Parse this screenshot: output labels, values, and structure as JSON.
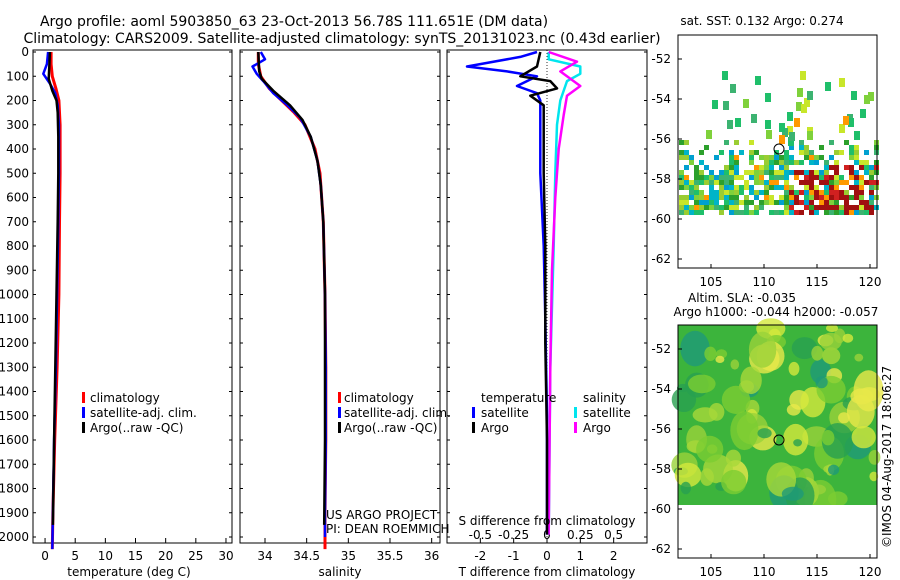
{
  "titles": {
    "line1": "Argo profile: aoml 5903850_63 23-Oct-2013 56.78S 111.651E (DM data)",
    "line2": "Climatology: CARS2009. Satellite-adjusted climatology: synTS_20131023.nc (0.43d earlier)"
  },
  "colors": {
    "climatology": "#ff0000",
    "satellite": "#0000ff",
    "argo": "#000000",
    "sat_salinity": "#00e5ee",
    "argo_salinity": "#ff00ff"
  },
  "depth_axis": {
    "ticks": [
      "0",
      "100",
      "200",
      "300",
      "400",
      "500",
      "600",
      "700",
      "800",
      "900",
      "1000",
      "1100",
      "1200",
      "1300",
      "1400",
      "1500",
      "1600",
      "1700",
      "1800",
      "1900",
      "2000"
    ]
  },
  "chart_data": [
    {
      "type": "line",
      "name": "temperature-profile",
      "xlabel": "temperature (deg C)",
      "xlim": [
        -2,
        31
      ],
      "ylim": [
        2050,
        0
      ],
      "xticks": [
        "0",
        "5",
        "10",
        "15",
        "20",
        "25",
        "30"
      ],
      "series": [
        {
          "name": "climatology",
          "points": [
            [
              1.0,
              0
            ],
            [
              1.0,
              50
            ],
            [
              1.2,
              100
            ],
            [
              1.8,
              150
            ],
            [
              2.3,
              200
            ],
            [
              2.5,
              300
            ],
            [
              2.5,
              500
            ],
            [
              2.4,
              700
            ],
            [
              2.3,
              1000
            ],
            [
              2.0,
              1300
            ],
            [
              1.6,
              1600
            ],
            [
              1.3,
              1900
            ],
            [
              1.2,
              2050
            ]
          ]
        },
        {
          "name": "satellite-adj. clim.",
          "points": [
            [
              0.5,
              0
            ],
            [
              0.3,
              50
            ],
            [
              -0.3,
              90
            ],
            [
              0.8,
              130
            ],
            [
              1.7,
              170
            ],
            [
              2.1,
              220
            ],
            [
              2.3,
              300
            ],
            [
              2.3,
              500
            ],
            [
              2.2,
              700
            ],
            [
              2.0,
              1000
            ],
            [
              1.8,
              1300
            ],
            [
              1.5,
              1600
            ],
            [
              1.3,
              1900
            ],
            [
              1.2,
              2050
            ]
          ]
        },
        {
          "name": "Argo(..raw -QC)",
          "points": [
            [
              0.8,
              0
            ],
            [
              0.7,
              60
            ],
            [
              0.6,
              110
            ],
            [
              1.2,
              160
            ],
            [
              1.9,
              200
            ],
            [
              2.1,
              250
            ],
            [
              2.2,
              350
            ],
            [
              2.2,
              500
            ],
            [
              2.1,
              700
            ],
            [
              1.9,
              1000
            ],
            [
              1.7,
              1300
            ],
            [
              1.5,
              1600
            ],
            [
              1.3,
              1950
            ]
          ]
        }
      ],
      "legend": [
        "climatology",
        "satellite-adj. clim.",
        "Argo(..raw -QC)"
      ]
    },
    {
      "type": "line",
      "name": "salinity-profile",
      "xlabel": "salinity",
      "xlim": [
        33.7,
        36.1
      ],
      "ylim": [
        2050,
        0
      ],
      "xticks": [
        "34",
        "34.5",
        "35",
        "35.5",
        "36"
      ],
      "series": [
        {
          "name": "climatology",
          "points": [
            [
              33.92,
              0
            ],
            [
              33.92,
              50
            ],
            [
              33.95,
              100
            ],
            [
              34.05,
              150
            ],
            [
              34.2,
              200
            ],
            [
              34.35,
              250
            ],
            [
              34.48,
              300
            ],
            [
              34.6,
              400
            ],
            [
              34.66,
              500
            ],
            [
              34.7,
              700
            ],
            [
              34.72,
              1000
            ],
            [
              34.73,
              1300
            ],
            [
              34.73,
              1600
            ],
            [
              34.72,
              1900
            ],
            [
              34.72,
              2050
            ]
          ]
        },
        {
          "name": "satellite-adj. clim.",
          "points": [
            [
              33.95,
              0
            ],
            [
              34.0,
              30
            ],
            [
              33.85,
              60
            ],
            [
              33.9,
              90
            ],
            [
              33.98,
              120
            ],
            [
              34.1,
              170
            ],
            [
              34.27,
              220
            ],
            [
              34.42,
              270
            ],
            [
              34.55,
              350
            ],
            [
              34.63,
              450
            ],
            [
              34.67,
              550
            ],
            [
              34.7,
              700
            ],
            [
              34.72,
              1000
            ],
            [
              34.73,
              1300
            ],
            [
              34.73,
              1600
            ],
            [
              34.72,
              1900
            ],
            [
              34.72,
              2000
            ]
          ]
        },
        {
          "name": "Argo(..raw -QC)",
          "points": [
            [
              33.92,
              0
            ],
            [
              33.93,
              80
            ],
            [
              33.96,
              110
            ],
            [
              34.1,
              160
            ],
            [
              34.3,
              220
            ],
            [
              34.45,
              280
            ],
            [
              34.55,
              350
            ],
            [
              34.63,
              450
            ],
            [
              34.67,
              550
            ],
            [
              34.7,
              700
            ],
            [
              34.72,
              1000
            ],
            [
              34.72,
              1300
            ],
            [
              34.72,
              1600
            ],
            [
              34.71,
              1950
            ]
          ]
        }
      ],
      "legend": [
        "climatology",
        "satellite-adj. clim.",
        "Argo(..raw -QC)"
      ],
      "annotation": [
        "US ARGO PROJECT",
        "PI: DEAN ROEMMICH"
      ]
    },
    {
      "type": "line",
      "name": "difference-profile",
      "xlabel": "T difference from climatology",
      "xlabel_top": "S difference from climatology",
      "xlim": [
        -3,
        3
      ],
      "ylim": [
        2050,
        0
      ],
      "xticks": [
        "-2",
        "-1",
        "0",
        "1",
        "2"
      ],
      "xticks_s": [
        "-0.5",
        "-0.25",
        "0",
        "0.25",
        "0.5"
      ],
      "legend_headers": [
        "temperature",
        "salinity"
      ],
      "legend": [
        "satellite",
        "Argo",
        "satellite",
        "Argo"
      ],
      "series": [
        {
          "name": "temperature satellite",
          "points": [
            [
              -0.3,
              0
            ],
            [
              -0.8,
              20
            ],
            [
              -2.4,
              60
            ],
            [
              -1.2,
              80
            ],
            [
              -0.3,
              100
            ],
            [
              -0.9,
              140
            ],
            [
              -0.3,
              170
            ],
            [
              -0.2,
              200
            ],
            [
              -0.2,
              300
            ],
            [
              -0.2,
              500
            ],
            [
              -0.1,
              800
            ],
            [
              -0.05,
              1100
            ],
            [
              0.0,
              1500
            ],
            [
              0.0,
              1990
            ]
          ]
        },
        {
          "name": "temperature Argo",
          "points": [
            [
              -0.2,
              0
            ],
            [
              -0.3,
              60
            ],
            [
              -0.8,
              100
            ],
            [
              0.1,
              120
            ],
            [
              0.3,
              150
            ],
            [
              -0.5,
              180
            ],
            [
              -0.1,
              220
            ],
            [
              -0.1,
              300
            ],
            [
              -0.1,
              500
            ],
            [
              -0.05,
              800
            ],
            [
              -0.05,
              1200
            ],
            [
              0.0,
              1600
            ],
            [
              0.0,
              1990
            ]
          ]
        },
        {
          "name": "salinity satellite",
          "points": [
            [
              0.05,
              0
            ],
            [
              0.05,
              30
            ],
            [
              1.0,
              60
            ],
            [
              1.0,
              90
            ],
            [
              0.6,
              120
            ],
            [
              0.4,
              200
            ],
            [
              0.3,
              300
            ],
            [
              0.25,
              500
            ],
            [
              0.2,
              800
            ],
            [
              0.1,
              1300
            ],
            [
              0.05,
              1990
            ]
          ]
        },
        {
          "name": "salinity Argo",
          "points": [
            [
              0.05,
              0
            ],
            [
              0.9,
              40
            ],
            [
              0.4,
              80
            ],
            [
              1.0,
              140
            ],
            [
              0.6,
              180
            ],
            [
              0.5,
              260
            ],
            [
              0.35,
              400
            ],
            [
              0.25,
              600
            ],
            [
              0.15,
              900
            ],
            [
              0.1,
              1300
            ],
            [
              0.05,
              1990
            ]
          ]
        }
      ]
    }
  ],
  "sst_map": {
    "title": "sat. SST: 0.132 Argo: 0.274",
    "xticks": [
      "105",
      "110",
      "115",
      "120"
    ],
    "yticks": [
      "-52",
      "-54",
      "-56",
      "-58",
      "-60",
      "-62"
    ]
  },
  "sla_map": {
    "title1": "Altim. SLA: -0.035",
    "title2": "Argo h1000: -0.044 h2000: -0.057",
    "xticks": [
      "105",
      "110",
      "115",
      "120"
    ],
    "yticks": [
      "-52",
      "-54",
      "-56",
      "-58",
      "-60",
      "-62"
    ]
  },
  "credit": "©IMOS 04-Aug-2017 18:06:27"
}
